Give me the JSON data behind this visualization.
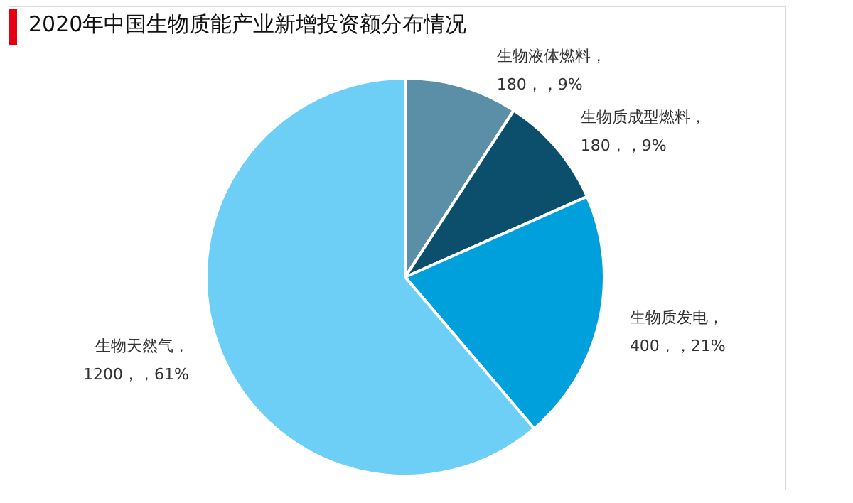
{
  "chart_data": {
    "type": "pie",
    "title": "2020年中国生物质能产业新增投资额分布情况",
    "categories": [
      "生物液体燃料",
      "生物质成型燃料",
      "生物质发电",
      "生物天然气"
    ],
    "values": [
      180,
      180,
      400,
      1200
    ],
    "colors": [
      "#5b8fa8",
      "#0b4f6c",
      "#00a0dc",
      "#6dcff6"
    ],
    "value_labels": [
      "，\n180，，9%",
      "，\n180，，9%",
      "，\n400，，21%",
      "，\n1200，，61%"
    ],
    "legend": false
  }
}
